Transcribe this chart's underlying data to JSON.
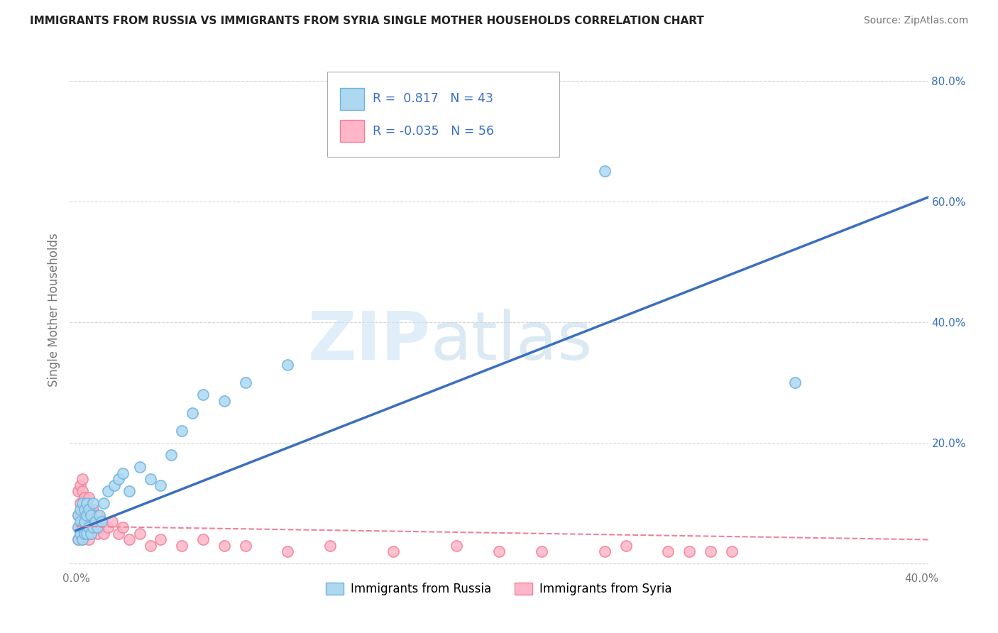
{
  "title": "IMMIGRANTS FROM RUSSIA VS IMMIGRANTS FROM SYRIA SINGLE MOTHER HOUSEHOLDS CORRELATION CHART",
  "source": "Source: ZipAtlas.com",
  "ylabel": "Single Mother Households",
  "xlim": [
    -0.003,
    0.403
  ],
  "ylim": [
    -0.01,
    0.85
  ],
  "ytick_values": [
    0.0,
    0.2,
    0.4,
    0.6,
    0.8
  ],
  "ytick_labels": [
    "",
    "20.0%",
    "40.0%",
    "60.0%",
    "80.0%"
  ],
  "russia_fill": "#ADD8F0",
  "russia_edge": "#6EB4E0",
  "syria_fill": "#FFB6C8",
  "syria_edge": "#F08098",
  "trendline_russia_color": "#3A6FBF",
  "trendline_syria_color": "#F08098",
  "R_russia": 0.817,
  "N_russia": 43,
  "R_syria": -0.035,
  "N_syria": 56,
  "legend_russia": "Immigrants from Russia",
  "legend_syria": "Immigrants from Syria",
  "watermark_zip": "ZIP",
  "watermark_atlas": "atlas",
  "background_color": "#FFFFFF",
  "grid_color": "#CCCCCC",
  "trendline_russia_intercept": 0.055,
  "trendline_russia_slope": 1.37,
  "trendline_syria_intercept": 0.062,
  "trendline_syria_slope": -0.055,
  "russia_scatter_x": [
    0.001,
    0.001,
    0.001,
    0.002,
    0.002,
    0.002,
    0.003,
    0.003,
    0.003,
    0.004,
    0.004,
    0.004,
    0.005,
    0.005,
    0.005,
    0.006,
    0.006,
    0.007,
    0.007,
    0.008,
    0.008,
    0.009,
    0.01,
    0.011,
    0.012,
    0.013,
    0.015,
    0.018,
    0.02,
    0.022,
    0.025,
    0.03,
    0.035,
    0.04,
    0.045,
    0.05,
    0.055,
    0.06,
    0.07,
    0.08,
    0.1,
    0.25,
    0.34
  ],
  "russia_scatter_y": [
    0.04,
    0.06,
    0.08,
    0.05,
    0.07,
    0.09,
    0.04,
    0.06,
    0.1,
    0.05,
    0.07,
    0.09,
    0.05,
    0.08,
    0.1,
    0.06,
    0.09,
    0.05,
    0.08,
    0.06,
    0.1,
    0.07,
    0.06,
    0.08,
    0.07,
    0.1,
    0.12,
    0.13,
    0.14,
    0.15,
    0.12,
    0.16,
    0.14,
    0.13,
    0.18,
    0.22,
    0.25,
    0.28,
    0.27,
    0.3,
    0.33,
    0.65,
    0.3
  ],
  "syria_scatter_x": [
    0.001,
    0.001,
    0.001,
    0.001,
    0.002,
    0.002,
    0.002,
    0.002,
    0.003,
    0.003,
    0.003,
    0.003,
    0.003,
    0.004,
    0.004,
    0.004,
    0.005,
    0.005,
    0.005,
    0.006,
    0.006,
    0.006,
    0.007,
    0.007,
    0.008,
    0.008,
    0.009,
    0.01,
    0.01,
    0.011,
    0.012,
    0.013,
    0.015,
    0.017,
    0.02,
    0.022,
    0.025,
    0.03,
    0.035,
    0.04,
    0.05,
    0.06,
    0.07,
    0.08,
    0.1,
    0.12,
    0.15,
    0.18,
    0.2,
    0.22,
    0.25,
    0.26,
    0.28,
    0.29,
    0.3,
    0.31
  ],
  "syria_scatter_y": [
    0.04,
    0.06,
    0.08,
    0.12,
    0.05,
    0.08,
    0.1,
    0.13,
    0.04,
    0.07,
    0.09,
    0.12,
    0.14,
    0.06,
    0.09,
    0.11,
    0.05,
    0.07,
    0.1,
    0.04,
    0.07,
    0.11,
    0.05,
    0.08,
    0.06,
    0.09,
    0.07,
    0.05,
    0.08,
    0.06,
    0.07,
    0.05,
    0.06,
    0.07,
    0.05,
    0.06,
    0.04,
    0.05,
    0.03,
    0.04,
    0.03,
    0.04,
    0.03,
    0.03,
    0.02,
    0.03,
    0.02,
    0.03,
    0.02,
    0.02,
    0.02,
    0.03,
    0.02,
    0.02,
    0.02,
    0.02
  ]
}
